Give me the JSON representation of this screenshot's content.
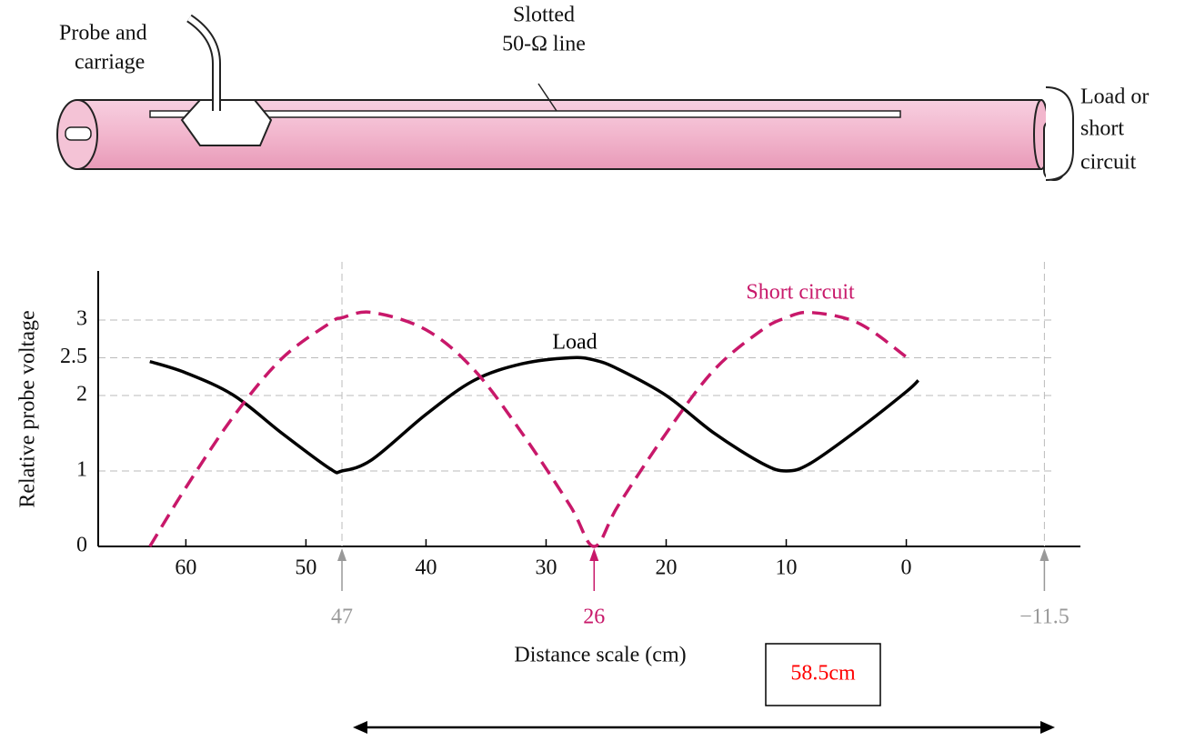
{
  "diagram": {
    "probe_label": [
      "Probe and",
      "carriage"
    ],
    "line_label": [
      "Slotted",
      "50-Ω line"
    ],
    "load_label": [
      "Load or",
      "short",
      "circuit"
    ]
  },
  "chart_data": {
    "type": "line",
    "y_label": "Relative probe voltage",
    "x_label": "Distance scale (cm)",
    "x": [
      63,
      60,
      56,
      52,
      48,
      47,
      44.5,
      40,
      36,
      32,
      28,
      26,
      24,
      20,
      16,
      12,
      10,
      8,
      4,
      0,
      -1
    ],
    "series": [
      {
        "name": "Load",
        "color": "#000000",
        "dashed": false,
        "values": [
          2.45,
          2.3,
          2.0,
          1.5,
          1.03,
          1.0,
          1.15,
          1.75,
          2.2,
          2.42,
          2.5,
          2.47,
          2.35,
          2.0,
          1.5,
          1.1,
          1.0,
          1.1,
          1.55,
          2.05,
          2.2
        ]
      },
      {
        "name": "Short circuit",
        "color": "#c8186a",
        "dashed": true,
        "values": [
          0,
          0.78,
          1.73,
          2.49,
          2.96,
          3.03,
          3.1,
          2.87,
          2.34,
          1.5,
          0.54,
          0,
          0.54,
          1.5,
          2.34,
          2.87,
          3.03,
          3.1,
          2.96,
          2.51,
          null
        ]
      }
    ],
    "xlim": [
      67.3,
      -14.5
    ],
    "ylim": [
      0,
      3.65
    ],
    "xticks": [
      60,
      50,
      40,
      30,
      20,
      10,
      0
    ],
    "yticks": [
      0,
      1,
      2,
      2.5,
      3
    ],
    "grid": true,
    "markers": [
      47,
      26,
      {
        "value": -11.5,
        "label": "−11.5"
      }
    ],
    "marker_colors": [
      "#999999",
      "#c8186a",
      "#999999"
    ],
    "annotation": "58.5cm"
  }
}
